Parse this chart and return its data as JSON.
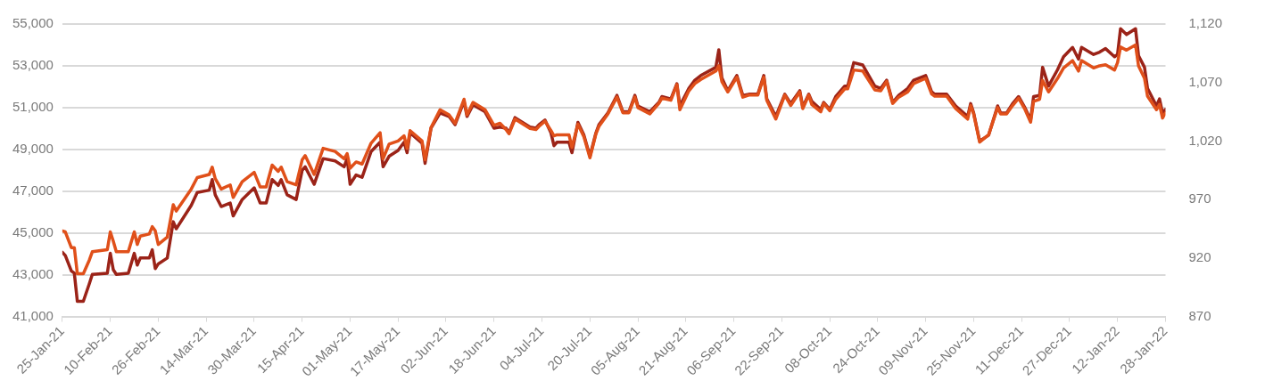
{
  "chart_data": {
    "type": "line",
    "x": [
      "2021-01-25",
      "2021-01-26",
      "2021-01-28",
      "2021-01-29",
      "2021-01-30",
      "2021-02-01",
      "2021-02-03",
      "2021-02-04",
      "2021-02-09",
      "2021-02-10",
      "2021-02-11",
      "2021-02-12",
      "2021-02-16",
      "2021-02-18",
      "2021-02-19",
      "2021-02-20",
      "2021-02-23",
      "2021-02-24",
      "2021-02-25",
      "2021-02-26",
      "2021-03-01",
      "2021-03-03",
      "2021-03-04",
      "2021-03-09",
      "2021-03-11",
      "2021-03-15",
      "2021-03-16",
      "2021-03-17",
      "2021-03-19",
      "2021-03-22",
      "2021-03-23",
      "2021-03-26",
      "2021-03-30",
      "2021-04-01",
      "2021-04-03",
      "2021-04-05",
      "2021-04-07",
      "2021-04-08",
      "2021-04-10",
      "2021-04-13",
      "2021-04-15",
      "2021-04-16",
      "2021-04-19",
      "2021-04-22",
      "2021-04-26",
      "2021-04-29",
      "2021-04-30",
      "2021-05-01",
      "2021-05-03",
      "2021-05-05",
      "2021-05-08",
      "2021-05-11",
      "2021-05-12",
      "2021-05-14",
      "2021-05-17",
      "2021-05-19",
      "2021-05-20",
      "2021-05-21",
      "2021-05-25",
      "2021-05-26",
      "2021-05-28",
      "2021-05-31",
      "2021-06-03",
      "2021-06-05",
      "2021-06-08",
      "2021-06-09",
      "2021-06-11",
      "2021-06-15",
      "2021-06-18",
      "2021-06-20",
      "2021-06-22",
      "2021-06-23",
      "2021-06-25",
      "2021-06-30",
      "2021-07-02",
      "2021-07-03",
      "2021-07-05",
      "2021-07-07",
      "2021-07-08",
      "2021-07-09",
      "2021-07-13",
      "2021-07-14",
      "2021-07-16",
      "2021-07-18",
      "2021-07-20",
      "2021-07-22",
      "2021-07-23",
      "2021-07-26",
      "2021-07-29",
      "2021-07-31",
      "2021-08-02",
      "2021-08-04",
      "2021-08-05",
      "2021-08-09",
      "2021-08-12",
      "2021-08-13",
      "2021-08-16",
      "2021-08-18",
      "2021-08-19",
      "2021-08-22",
      "2021-08-24",
      "2021-08-26",
      "2021-08-31",
      "2021-09-01",
      "2021-09-02",
      "2021-09-04",
      "2021-09-07",
      "2021-09-09",
      "2021-09-11",
      "2021-09-14",
      "2021-09-16",
      "2021-09-17",
      "2021-09-20",
      "2021-09-23",
      "2021-09-25",
      "2021-09-28",
      "2021-09-29",
      "2021-10-01",
      "2021-10-02",
      "2021-10-05",
      "2021-10-06",
      "2021-10-08",
      "2021-10-10",
      "2021-10-13",
      "2021-10-14",
      "2021-10-16",
      "2021-10-19",
      "2021-10-23",
      "2021-10-25",
      "2021-10-27",
      "2021-10-29",
      "2021-10-31",
      "2021-11-03",
      "2021-11-05",
      "2021-11-09",
      "2021-11-11",
      "2021-11-12",
      "2021-11-16",
      "2021-11-19",
      "2021-11-23",
      "2021-11-24",
      "2021-11-25",
      "2021-11-27",
      "2021-11-30",
      "2021-12-03",
      "2021-12-04",
      "2021-12-06",
      "2021-12-08",
      "2021-12-10",
      "2021-12-12",
      "2021-12-14",
      "2021-12-15",
      "2021-12-17",
      "2021-12-18",
      "2021-12-20",
      "2021-12-23",
      "2021-12-25",
      "2021-12-28",
      "2021-12-30",
      "2021-12-31",
      "2022-01-04",
      "2022-01-06",
      "2022-01-08",
      "2022-01-11",
      "2022-01-12",
      "2022-01-13",
      "2022-01-15",
      "2022-01-18",
      "2022-01-19",
      "2022-01-21",
      "2022-01-22",
      "2022-01-25",
      "2022-01-26",
      "2022-01-27",
      "2022-01-28"
    ],
    "series": [
      {
        "color": "#e0501a",
        "values": [
          45100,
          45050,
          44300,
          44300,
          43050,
          43050,
          43700,
          44100,
          44200,
          45050,
          44600,
          44100,
          44100,
          45050,
          44450,
          44850,
          44950,
          45300,
          45100,
          44450,
          44800,
          46350,
          46050,
          47100,
          47650,
          47800,
          48150,
          47600,
          47100,
          47300,
          46700,
          47450,
          47900,
          47200,
          47200,
          48250,
          47950,
          48150,
          47450,
          47300,
          48500,
          48700,
          47800,
          49050,
          48900,
          48550,
          48800,
          48100,
          48400,
          48300,
          49300,
          49800,
          48550,
          49250,
          49400,
          49650,
          49050,
          49900,
          49400,
          48500,
          50050,
          50900,
          50650,
          50250,
          51400,
          50650,
          51250,
          50900,
          50150,
          50250,
          49950,
          49750,
          50450,
          50000,
          49950,
          50100,
          50350,
          49900,
          49650,
          49700,
          49700,
          49100,
          50200,
          49600,
          48600,
          49750,
          50100,
          50700,
          51500,
          50750,
          50750,
          51500,
          51000,
          50700,
          51200,
          51450,
          51350,
          52100,
          50900,
          51800,
          52150,
          52350,
          52750,
          53000,
          52250,
          51750,
          52450,
          51500,
          51600,
          51600,
          52450,
          51350,
          50450,
          51600,
          51100,
          51750,
          50950,
          51600,
          51150,
          50800,
          51200,
          50850,
          51400,
          51900,
          51900,
          52800,
          52750,
          51850,
          51800,
          52250,
          51200,
          51500,
          51750,
          52150,
          52400,
          51650,
          51550,
          51550,
          50950,
          50450,
          51100,
          50700,
          49350,
          49700,
          51000,
          50700,
          50700,
          51100,
          51450,
          50950,
          50300,
          51300,
          51400,
          52300,
          51750,
          52400,
          52900,
          53250,
          52750,
          53250,
          52900,
          53000,
          53050,
          52800,
          53150,
          53900,
          53750,
          54000,
          53000,
          52400,
          51550,
          50900,
          51150,
          50500,
          50750
        ]
      },
      {
        "color": "#9b2318",
        "axis": "y2",
        "values": [
          925,
          922,
          909,
          907,
          883,
          883,
          898,
          906,
          907,
          924,
          910,
          906,
          907,
          924,
          914,
          920,
          920,
          927,
          911,
          915,
          920,
          951,
          945,
          965,
          976,
          978,
          987,
          974,
          964,
          967,
          956,
          970,
          980,
          967,
          967,
          987,
          982,
          987,
          974,
          970,
          995,
          998,
          983,
          1005,
          1003,
          998,
          1005,
          983,
          991,
          989,
          1011,
          1019,
          998,
          1007,
          1012,
          1019,
          1010,
          1027,
          1018,
          1001,
          1031,
          1044,
          1041,
          1034,
          1054,
          1041,
          1051,
          1045,
          1031,
          1032,
          1031,
          1027,
          1040,
          1032,
          1031,
          1034,
          1038,
          1027,
          1016,
          1019,
          1019,
          1010,
          1036,
          1025,
          1007,
          1027,
          1034,
          1044,
          1059,
          1045,
          1045,
          1059,
          1050,
          1045,
          1053,
          1058,
          1056,
          1069,
          1050,
          1065,
          1072,
          1076,
          1083,
          1098,
          1074,
          1063,
          1076,
          1059,
          1060,
          1060,
          1076,
          1056,
          1041,
          1060,
          1052,
          1063,
          1049,
          1060,
          1054,
          1047,
          1053,
          1047,
          1058,
          1067,
          1067,
          1087,
          1085,
          1067,
          1065,
          1072,
          1053,
          1059,
          1065,
          1072,
          1076,
          1062,
          1060,
          1060,
          1050,
          1041,
          1052,
          1044,
          1020,
          1025,
          1050,
          1044,
          1044,
          1052,
          1058,
          1049,
          1038,
          1058,
          1059,
          1083,
          1067,
          1081,
          1092,
          1100,
          1090,
          1100,
          1094,
          1096,
          1099,
          1092,
          1094,
          1116,
          1111,
          1116,
          1093,
          1083,
          1065,
          1050,
          1056,
          1044,
          1047
        ]
      }
    ],
    "xlim": [
      "2021-01-25",
      "2022-01-28"
    ],
    "xticks": [
      {
        "value": "2021-01-25",
        "label": "25-Jan-21"
      },
      {
        "value": "2021-02-10",
        "label": "10-Feb-21"
      },
      {
        "value": "2021-02-26",
        "label": "26-Feb-21"
      },
      {
        "value": "2021-03-14",
        "label": "14-Mar-21"
      },
      {
        "value": "2021-03-30",
        "label": "30-Mar-21"
      },
      {
        "value": "2021-04-15",
        "label": "15-Apr-21"
      },
      {
        "value": "2021-05-01",
        "label": "01-May-21"
      },
      {
        "value": "2021-05-17",
        "label": "17-May-21"
      },
      {
        "value": "2021-06-02",
        "label": "02-Jun-21"
      },
      {
        "value": "2021-06-18",
        "label": "18-Jun-21"
      },
      {
        "value": "2021-07-04",
        "label": "04-Jul-21"
      },
      {
        "value": "2021-07-20",
        "label": "20-Jul-21"
      },
      {
        "value": "2021-08-05",
        "label": "05-Aug-21"
      },
      {
        "value": "2021-08-21",
        "label": "21-Aug-21"
      },
      {
        "value": "2021-09-06",
        "label": "06-Sep-21"
      },
      {
        "value": "2021-09-22",
        "label": "22-Sep-21"
      },
      {
        "value": "2021-10-08",
        "label": "08-Oct-21"
      },
      {
        "value": "2021-10-24",
        "label": "24-Oct-21"
      },
      {
        "value": "2021-11-09",
        "label": "09-Nov-21"
      },
      {
        "value": "2021-11-25",
        "label": "25-Nov-21"
      },
      {
        "value": "2021-12-11",
        "label": "11-Dec-21"
      },
      {
        "value": "2021-12-27",
        "label": "27-Dec-21"
      },
      {
        "value": "2022-01-12",
        "label": "12-Jan-22"
      },
      {
        "value": "2022-01-28",
        "label": "28-Jan-22"
      }
    ],
    "ylim": [
      41000,
      55000
    ],
    "yticks": [
      {
        "value": 41000,
        "label": "41,000"
      },
      {
        "value": 43000,
        "label": "43,000"
      },
      {
        "value": 45000,
        "label": "45,000"
      },
      {
        "value": 47000,
        "label": "47,000"
      },
      {
        "value": 49000,
        "label": "49,000"
      },
      {
        "value": 51000,
        "label": "51,000"
      },
      {
        "value": 53000,
        "label": "53,000"
      },
      {
        "value": 55000,
        "label": "55,000"
      }
    ],
    "y2lim": [
      870,
      1120
    ],
    "y2ticks": [
      870,
      920,
      970,
      {
        "value": 1020,
        "label": "1,020"
      },
      {
        "value": 1070,
        "label": "1,070"
      },
      {
        "value": 1120,
        "label": "1,120"
      }
    ],
    "grid": "y",
    "marker": "none",
    "line_style": "solid"
  }
}
